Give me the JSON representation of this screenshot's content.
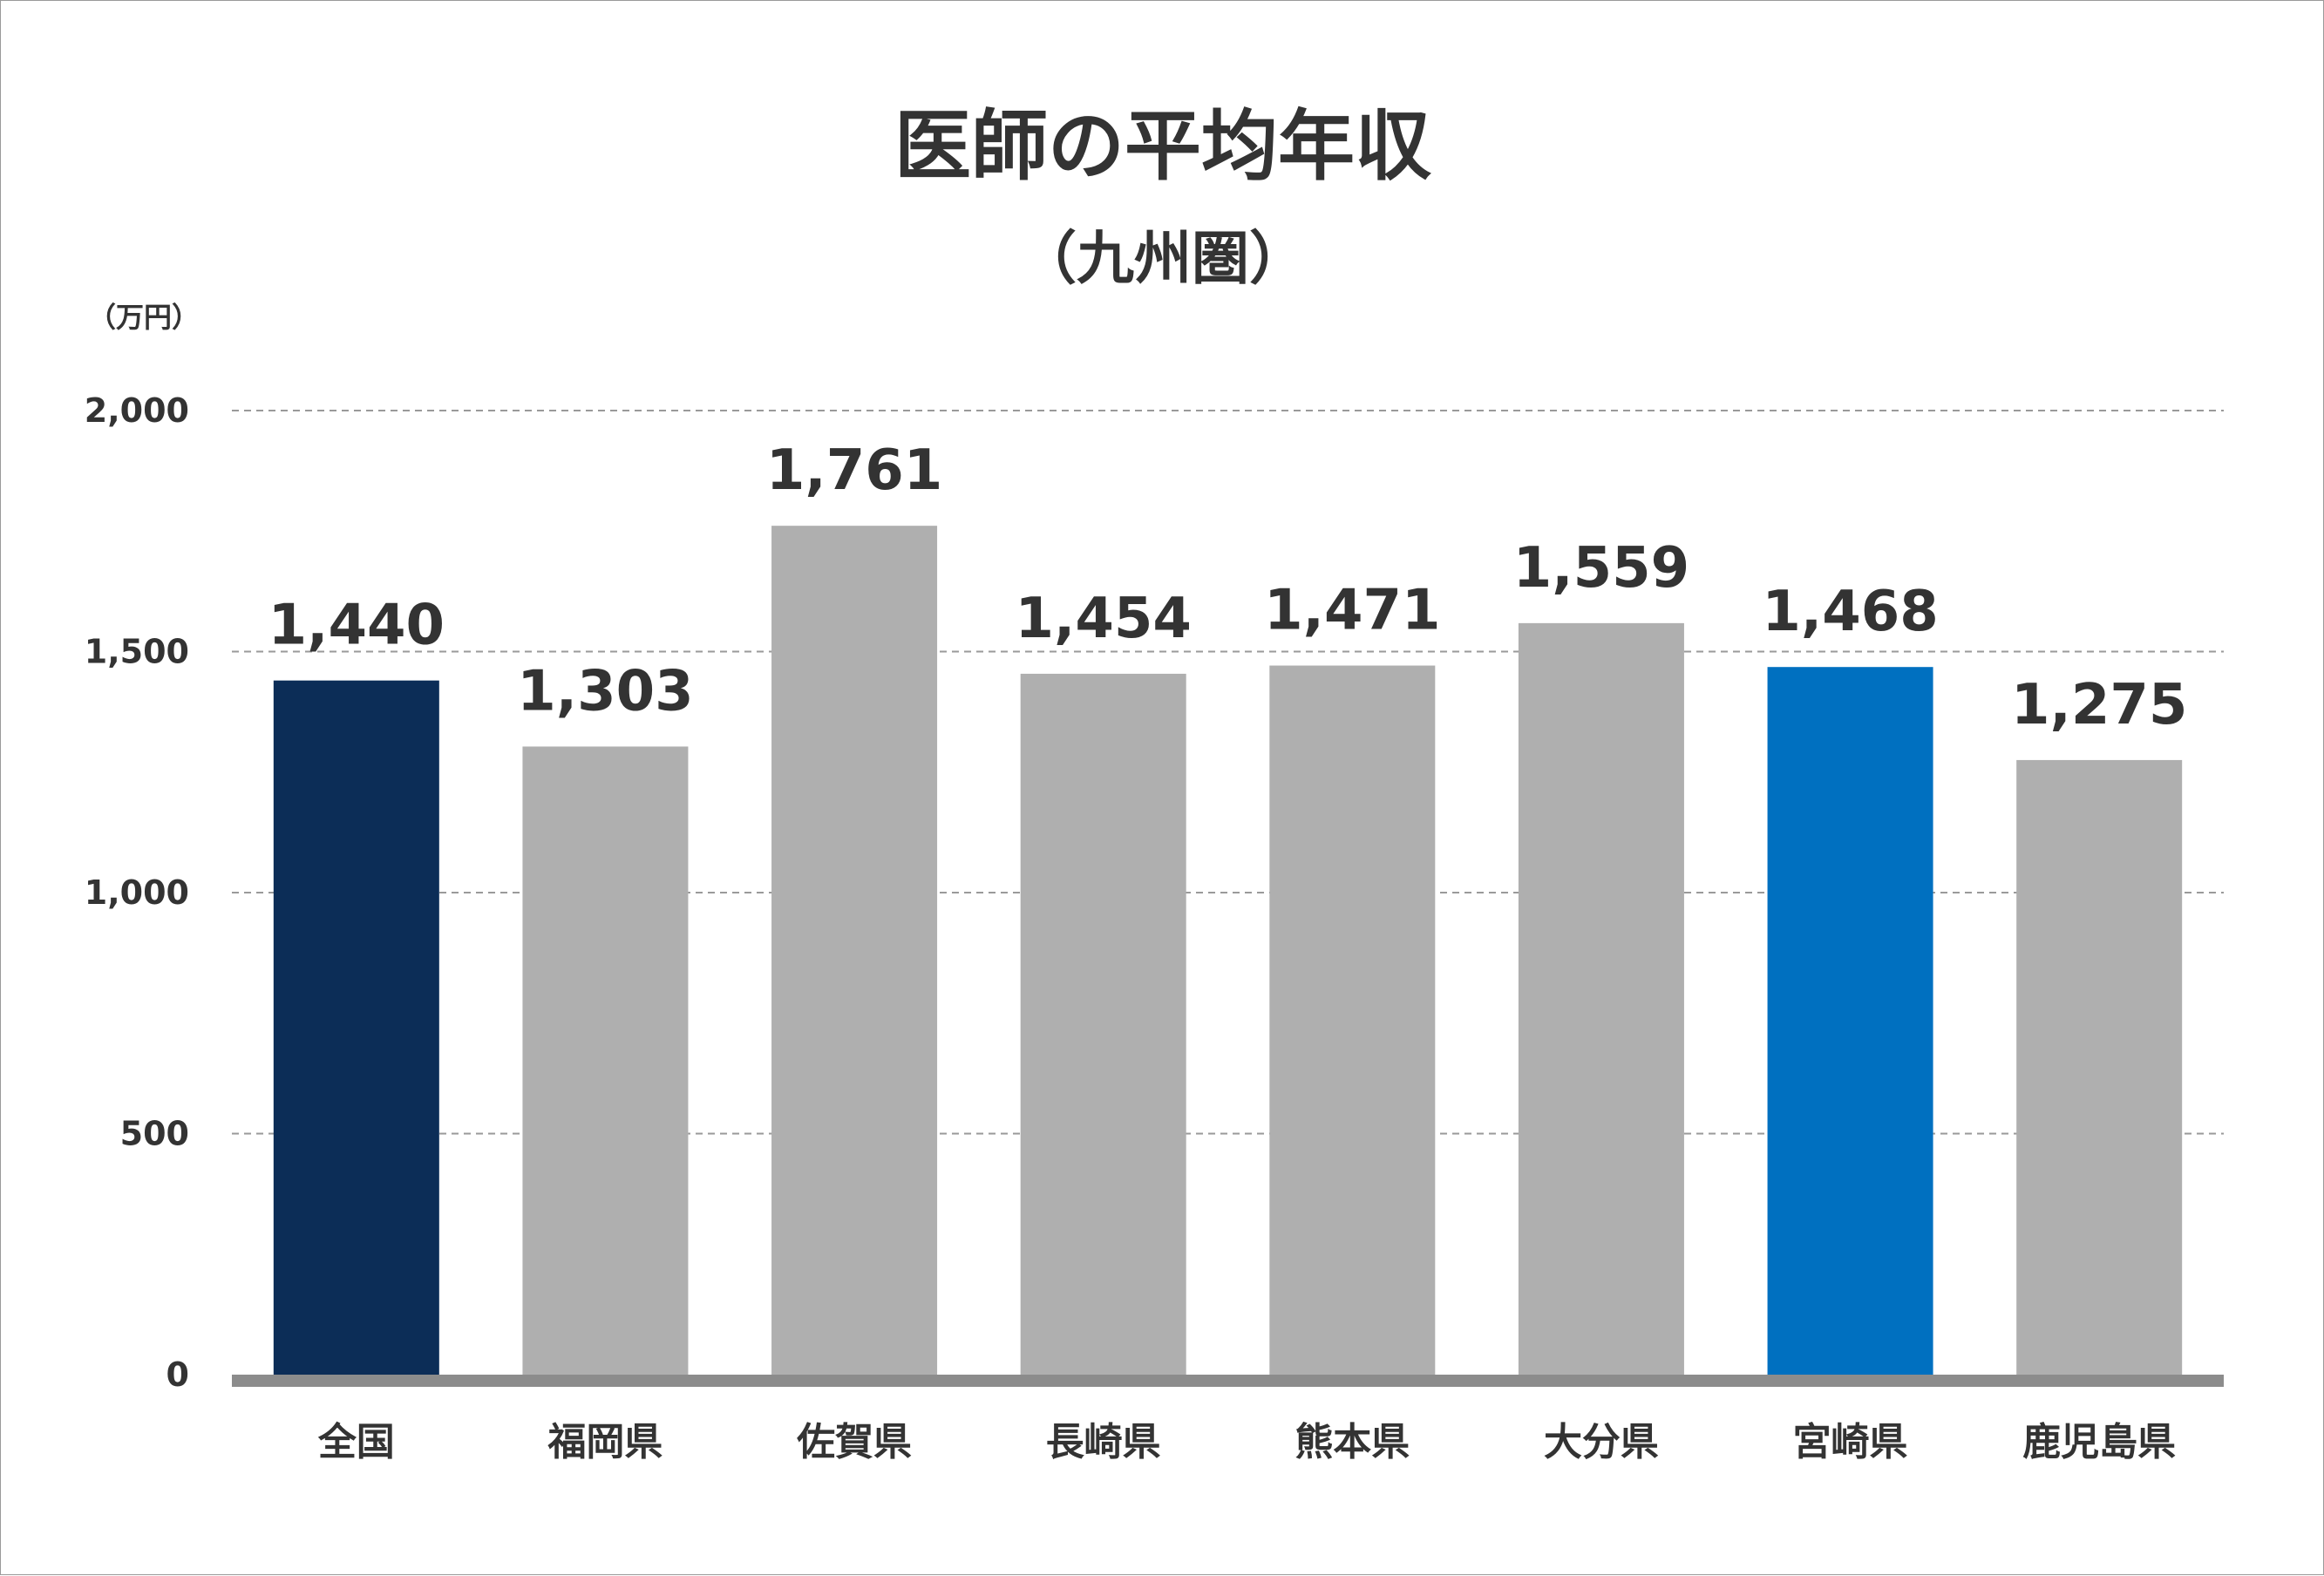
{
  "chart_data": {
    "type": "bar",
    "title": "医師の平均年収",
    "subtitle": "（九州圏）",
    "ylabel": "（万円）",
    "xlabel": "",
    "categories": [
      "全国",
      "福岡県",
      "佐賀県",
      "長崎県",
      "熊本県",
      "大分県",
      "宮崎県",
      "鹿児島県"
    ],
    "values": [
      1440,
      1303,
      1761,
      1454,
      1471,
      1559,
      1468,
      1275
    ],
    "data_labels": [
      "1,440",
      "1,303",
      "1,761",
      "1,454",
      "1,471",
      "1,559",
      "1,468",
      "1,275"
    ],
    "ylim": [
      0,
      2000
    ],
    "yticks": [
      0,
      500,
      1000,
      1500,
      2000
    ],
    "ytick_labels": [
      "0",
      "500",
      "1,000",
      "1,500",
      "2,000"
    ],
    "grid": true,
    "legend": "none",
    "colors": {
      "default_bar": "#afafaf",
      "highlight_national": "#0c2d57",
      "highlight_miyazaki": "#0070c0",
      "axis": "#8c8c8c",
      "gridline": "#9a9a9a",
      "text": "#333333"
    },
    "bar_colors": [
      "#0c2d57",
      "#afafaf",
      "#afafaf",
      "#afafaf",
      "#afafaf",
      "#afafaf",
      "#0070c0",
      "#afafaf"
    ]
  }
}
